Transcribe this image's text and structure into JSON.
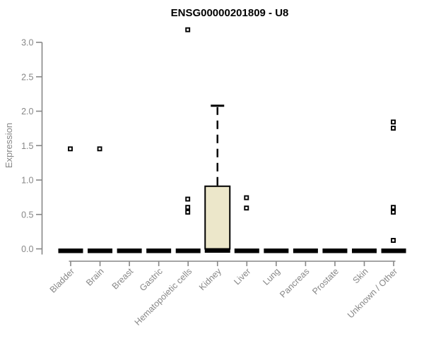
{
  "chart_data": {
    "type": "boxplot",
    "title": "ENSG00000201809 - U8",
    "xlabel": "",
    "ylabel": "Expression",
    "ylim": [
      0,
      3.25
    ],
    "yticks": [
      "0.0",
      "0.5",
      "1.0",
      "1.5",
      "2.0",
      "2.5",
      "3.0"
    ],
    "grid": false,
    "legend": "none",
    "marker": "open-square",
    "categories": [
      "Bladder",
      "Brain",
      "Breast",
      "Gastric",
      "Hematopoietic cells",
      "Kidney",
      "Liver",
      "Lung",
      "Pancreas",
      "Prostate",
      "Skin",
      "Unknown / Other"
    ],
    "series": [
      {
        "category": "Bladder",
        "q1": 0,
        "median": 0,
        "q3": 0,
        "whisker_low": 0,
        "whisker_high": 0,
        "outliers": [
          1.45
        ]
      },
      {
        "category": "Brain",
        "q1": 0,
        "median": 0,
        "q3": 0,
        "whisker_low": 0,
        "whisker_high": 0,
        "outliers": [
          1.45
        ]
      },
      {
        "category": "Breast",
        "q1": 0,
        "median": 0,
        "q3": 0,
        "whisker_low": 0,
        "whisker_high": 0,
        "outliers": []
      },
      {
        "category": "Gastric",
        "q1": 0,
        "median": 0,
        "q3": 0,
        "whisker_low": 0,
        "whisker_high": 0,
        "outliers": []
      },
      {
        "category": "Hematopoietic cells",
        "q1": 0,
        "median": 0,
        "q3": 0,
        "whisker_low": 0,
        "whisker_high": 0,
        "outliers": [
          3.18,
          0.72,
          0.6,
          0.53
        ]
      },
      {
        "category": "Kidney",
        "q1": 0,
        "median": 0,
        "q3": 0.91,
        "whisker_low": 0,
        "whisker_high": 2.08,
        "outliers": []
      },
      {
        "category": "Liver",
        "q1": 0,
        "median": 0,
        "q3": 0,
        "whisker_low": 0,
        "whisker_high": 0,
        "outliers": [
          0.74,
          0.59
        ]
      },
      {
        "category": "Lung",
        "q1": 0,
        "median": 0,
        "q3": 0,
        "whisker_low": 0,
        "whisker_high": 0,
        "outliers": []
      },
      {
        "category": "Pancreas",
        "q1": 0,
        "median": 0,
        "q3": 0,
        "whisker_low": 0,
        "whisker_high": 0,
        "outliers": []
      },
      {
        "category": "Prostate",
        "q1": 0,
        "median": 0,
        "q3": 0,
        "whisker_low": 0,
        "whisker_high": 0,
        "outliers": []
      },
      {
        "category": "Skin",
        "q1": 0,
        "median": 0,
        "q3": 0,
        "whisker_low": 0,
        "whisker_high": 0,
        "outliers": []
      },
      {
        "category": "Unknown / Other",
        "q1": 0,
        "median": 0,
        "q3": 0,
        "whisker_low": 0,
        "whisker_high": 0,
        "outliers": [
          1.84,
          1.75,
          0.6,
          0.53,
          0.12
        ]
      }
    ],
    "colors": {
      "box_fill": "#ece7ca",
      "box_border": "#000000",
      "whisker": "#000000",
      "outlier": "#000000",
      "axis": "#878787",
      "tick_label": "#878787",
      "title": "#000000"
    }
  }
}
